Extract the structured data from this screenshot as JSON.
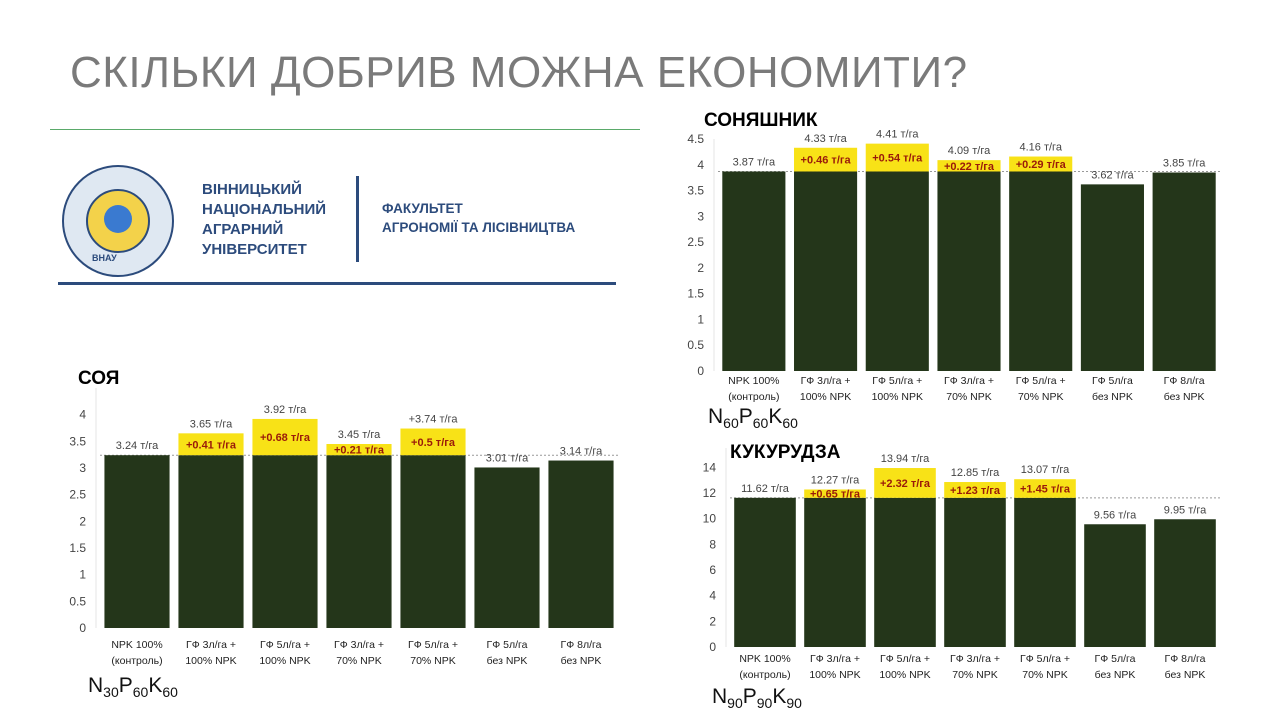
{
  "title": "СКІЛЬКИ ДОБРИВ МОЖНА ЕКОНОМИТИ?",
  "university": {
    "name_lines": [
      "ВІННИЦЬКИЙ",
      "НАЦІОНАЛЬНИЙ",
      "АГРАРНИЙ",
      "УНІВЕРСИТЕТ"
    ],
    "faculty_lines": [
      "ФАКУЛЬТЕТ",
      "АГРОНОМІЇ ТА ЛІСІВНИЦТВА"
    ],
    "logo_abbr": "ВНАУ"
  },
  "colors": {
    "bar": "#24361a",
    "highlight": "#f8e217",
    "increase_text": "#9a1a0a",
    "title": "#7a7a7a",
    "brand": "#2c4b7c"
  },
  "chart_data": [
    {
      "type": "bar",
      "id": "soy",
      "title": "СОЯ",
      "formula": {
        "n": "30",
        "p": "60",
        "k": "60"
      },
      "categories": [
        [
          "NPK 100%",
          "(контроль)"
        ],
        [
          "ГФ 3л/га +",
          "100% NPK"
        ],
        [
          "ГФ 5л/га +",
          "100% NPK"
        ],
        [
          "ГФ 3л/га +",
          "70% NPK"
        ],
        [
          "ГФ 5л/га +",
          "70% NPK"
        ],
        [
          "ГФ 5л/га",
          "без NPK"
        ],
        [
          "ГФ 8л/га",
          "без NPK"
        ]
      ],
      "values": [
        3.24,
        3.65,
        3.92,
        3.45,
        3.74,
        3.01,
        3.14
      ],
      "value_labels": [
        "3.24 т/га",
        "3.65 т/га",
        "3.92 т/га",
        "3.45 т/га",
        "+3.74 т/га",
        "3.01 т/га",
        "3.14 т/га"
      ],
      "increase_labels": [
        "",
        "+0.41 т/га",
        "+0.68 т/га",
        "+0.21 т/га",
        "+0.5 т/га",
        "",
        ""
      ],
      "baseline": 3.24,
      "ylim": [
        0,
        4.5
      ],
      "ticks": [
        0,
        0.5,
        1,
        1.5,
        2,
        2.5,
        3,
        3.5,
        4
      ],
      "tick_labels": [
        "0",
        "0.5",
        "1",
        "1.5",
        "2",
        "2.5",
        "3",
        "3.5",
        "4"
      ]
    },
    {
      "type": "bar",
      "id": "sunflower",
      "title": "СОНЯШНИК",
      "formula": {
        "n": "60",
        "p": "60",
        "k": "60"
      },
      "categories": [
        [
          "NPK 100%",
          "(контроль)"
        ],
        [
          "ГФ 3л/га +",
          "100% NPK"
        ],
        [
          "ГФ 5л/га +",
          "100% NPK"
        ],
        [
          "ГФ 3л/га +",
          "70% NPK"
        ],
        [
          "ГФ 5л/га +",
          "70% NPK"
        ],
        [
          "ГФ 5л/га",
          "без NPK"
        ],
        [
          "ГФ 8л/га",
          "без NPK"
        ]
      ],
      "values": [
        3.87,
        4.33,
        4.41,
        4.09,
        4.16,
        3.62,
        3.85
      ],
      "value_labels": [
        "3.87 т/га",
        "4.33 т/га",
        "4.41 т/га",
        "4.09 т/га",
        "4.16 т/га",
        "3.62 т/га",
        "3.85 т/га"
      ],
      "increase_labels": [
        "",
        "+0.46 т/га",
        "+0.54 т/га",
        "+0.22 т/га",
        "+0.29 т/га",
        "",
        ""
      ],
      "baseline": 3.87,
      "ylim": [
        0,
        4.5
      ],
      "ticks": [
        0,
        0.5,
        1,
        1.5,
        2,
        2.5,
        3,
        3.5,
        4,
        4.5
      ],
      "tick_labels": [
        "0",
        "0.5",
        "1",
        "1.5",
        "2",
        "2.5",
        "3",
        "3.5",
        "4",
        "4.5"
      ]
    },
    {
      "type": "bar",
      "id": "corn",
      "title": "КУКУРУДЗА",
      "formula": {
        "n": "90",
        "p": "90",
        "k": "90"
      },
      "categories": [
        [
          "NPK 100%",
          "(контроль)"
        ],
        [
          "ГФ 3л/га +",
          "100% NPK"
        ],
        [
          "ГФ 5л/га +",
          "100% NPK"
        ],
        [
          "ГФ 3л/га +",
          "70% NPK"
        ],
        [
          "ГФ 5л/га +",
          "70% NPK"
        ],
        [
          "ГФ 5л/га",
          "без NPK"
        ],
        [
          "ГФ 8л/га",
          "без NPK"
        ]
      ],
      "values": [
        11.62,
        12.27,
        13.94,
        12.85,
        13.07,
        9.56,
        9.95
      ],
      "value_labels": [
        "11.62 т/га",
        "12.27 т/га",
        "13.94 т/га",
        "12.85 т/га",
        "13.07 т/га",
        "9.56 т/га",
        "9.95 т/га"
      ],
      "increase_labels": [
        "",
        "+0.65 т/га",
        "+2.32 т/га",
        "+1.23 т/га",
        "+1.45 т/га",
        "",
        ""
      ],
      "baseline": 11.62,
      "ylim": [
        0,
        15.5
      ],
      "ticks": [
        0,
        2,
        4,
        6,
        8,
        10,
        12,
        14
      ],
      "tick_labels": [
        "0",
        "2",
        "4",
        "6",
        "8",
        "10",
        "12",
        "14"
      ]
    }
  ]
}
